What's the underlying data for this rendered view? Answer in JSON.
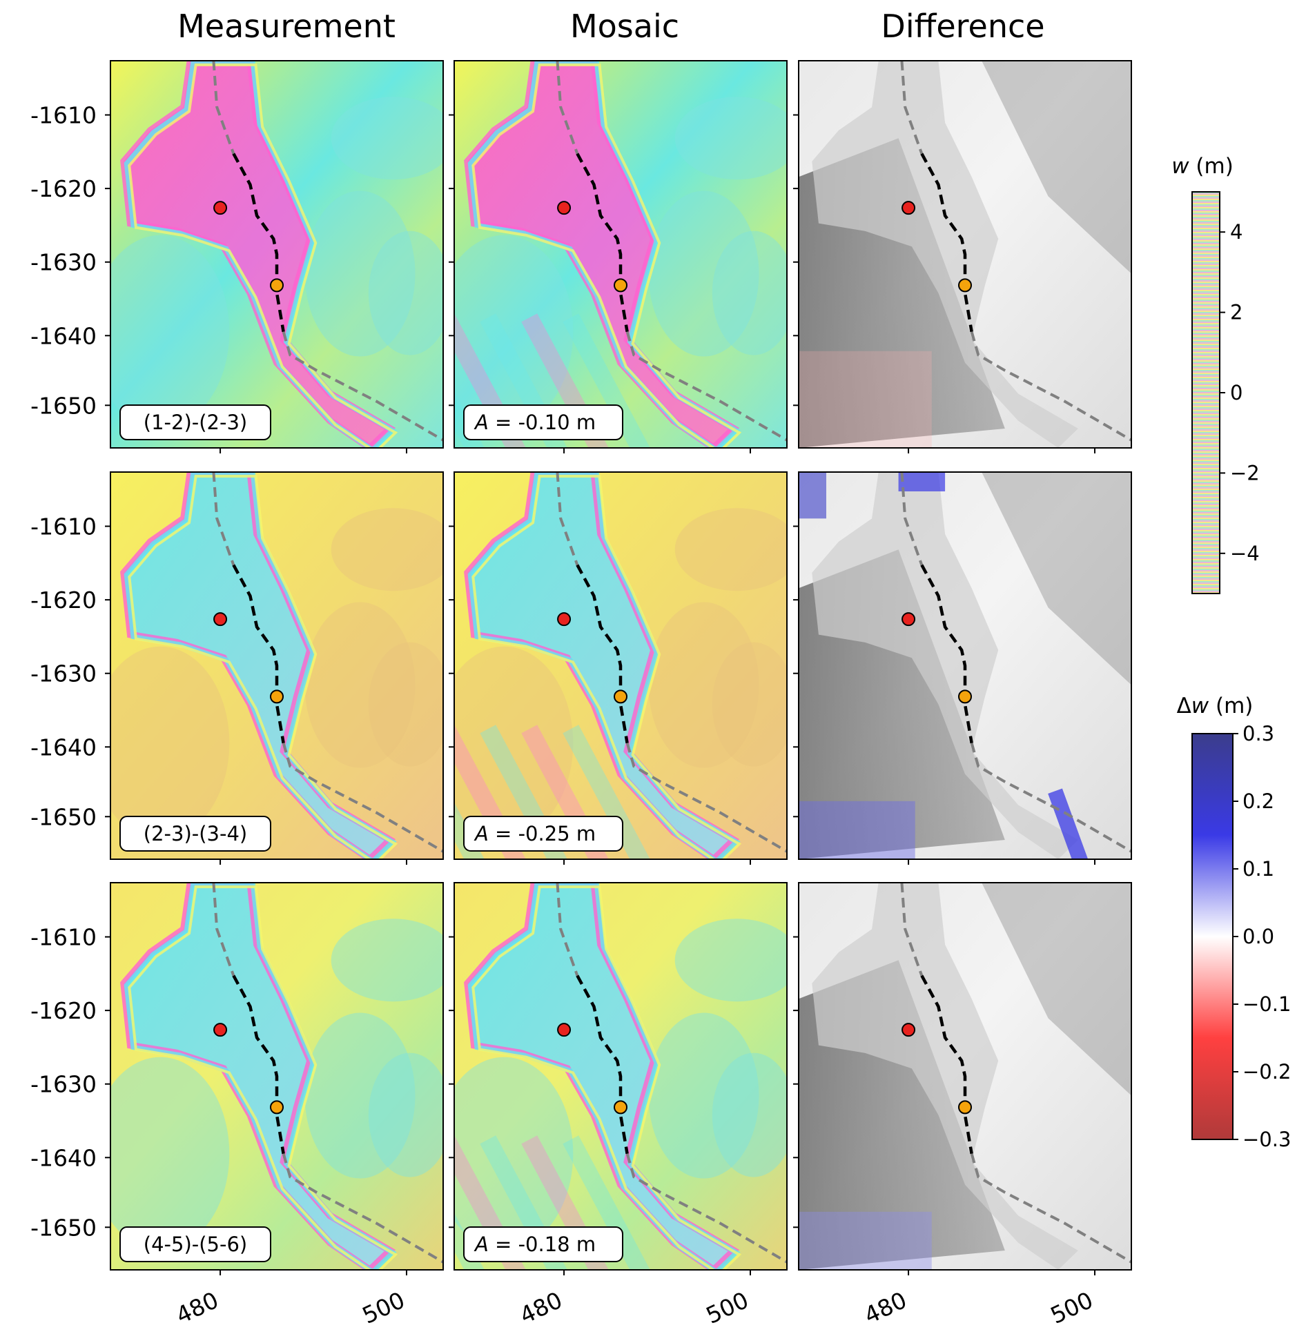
{
  "figure": {
    "columns": [
      "Measurement",
      "Mosaic",
      "Difference"
    ],
    "rows": [
      {
        "measurement_label": "(1-2)-(2-3)",
        "mosaic_amplitude": "-0.10 m"
      },
      {
        "measurement_label": "(2-3)-(3-4)",
        "mosaic_amplitude": "-0.25 m"
      },
      {
        "measurement_label": "(4-5)-(5-6)",
        "mosaic_amplitude": "-0.18 m"
      }
    ],
    "amplitude_symbol": "A",
    "ytick_labels": [
      "-1610",
      "-1620",
      "-1630",
      "-1640",
      "-1650"
    ],
    "xtick_labels": [
      "480",
      "500"
    ]
  },
  "colorbars": {
    "w": {
      "symbol": "w",
      "unit": " (m)",
      "ticks": [
        "4",
        "2",
        "0",
        "−2",
        "−4"
      ],
      "range": [
        -5,
        5
      ]
    },
    "dw": {
      "symbol": "w",
      "prefix": "Δ",
      "unit": " (m)",
      "ticks": [
        "0.3",
        "0.2",
        "0.1",
        "0.0",
        "−0.1",
        "−0.2",
        "−0.3"
      ],
      "range": [
        -0.3,
        0.3
      ],
      "colors": [
        "#b03a3a",
        "#ff4040",
        "#ffffff",
        "#3a3ae6",
        "#3b3d8c"
      ]
    }
  },
  "markers": {
    "upper_color": "#e8231f",
    "lower_color": "#f5a30c"
  }
}
